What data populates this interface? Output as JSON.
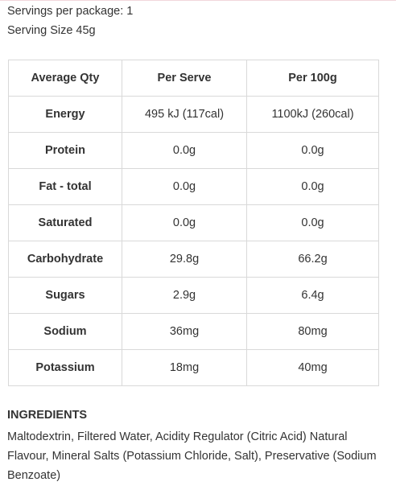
{
  "servings_per_package": "Servings per package: 1",
  "serving_size": "Serving Size 45g",
  "table": {
    "headers": [
      "Average Qty",
      "Per Serve",
      "Per 100g"
    ],
    "rows": [
      {
        "label": "Energy",
        "per_serve": "495 kJ (117cal)",
        "per_100g": "1100kJ (260cal)"
      },
      {
        "label": "Protein",
        "per_serve": "0.0g",
        "per_100g": "0.0g"
      },
      {
        "label": "Fat - total",
        "per_serve": "0.0g",
        "per_100g": "0.0g"
      },
      {
        "label": "Saturated",
        "per_serve": "0.0g",
        "per_100g": "0.0g"
      },
      {
        "label": "Carbohydrate",
        "per_serve": "29.8g",
        "per_100g": "66.2g"
      },
      {
        "label": "Sugars",
        "per_serve": "2.9g",
        "per_100g": "6.4g"
      },
      {
        "label": "Sodium",
        "per_serve": "36mg",
        "per_100g": "80mg"
      },
      {
        "label": "Potassium",
        "per_serve": "18mg",
        "per_100g": "40mg"
      }
    ]
  },
  "ingredients": {
    "heading": "INGREDIENTS",
    "text": "Maltodextrin, Filtered Water, Acidity Regulator (Citric Acid) Natural Flavour, Mineral Salts (Potassium Chloride, Salt), Preservative (Sodium Benzoate)"
  }
}
